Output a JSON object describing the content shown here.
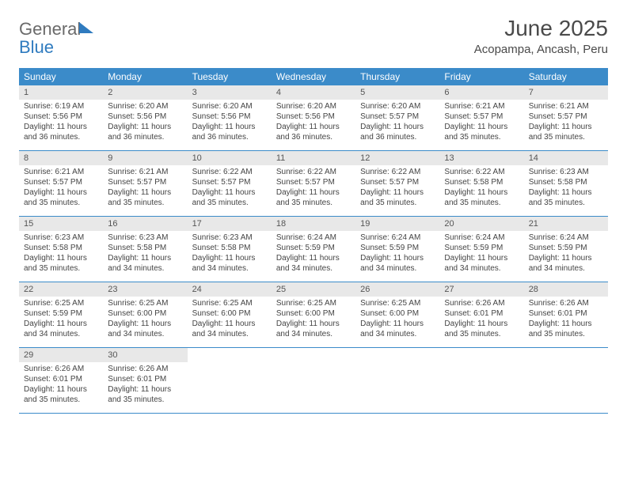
{
  "logo": {
    "part1": "General",
    "part2": "Blue"
  },
  "title": "June 2025",
  "subtitle": "Acopampa, Ancash, Peru",
  "colors": {
    "header_bg": "#3b8bc9",
    "header_text": "#ffffff",
    "daynum_bg": "#e8e8e8",
    "border": "#3b8bc9",
    "logo_gray": "#6a6a6a",
    "logo_blue": "#2f7bbf"
  },
  "weekdays": [
    "Sunday",
    "Monday",
    "Tuesday",
    "Wednesday",
    "Thursday",
    "Friday",
    "Saturday"
  ],
  "weeks": [
    [
      {
        "day": "1",
        "sunrise": "6:19 AM",
        "sunset": "5:56 PM",
        "daylight": "11 hours and 36 minutes."
      },
      {
        "day": "2",
        "sunrise": "6:20 AM",
        "sunset": "5:56 PM",
        "daylight": "11 hours and 36 minutes."
      },
      {
        "day": "3",
        "sunrise": "6:20 AM",
        "sunset": "5:56 PM",
        "daylight": "11 hours and 36 minutes."
      },
      {
        "day": "4",
        "sunrise": "6:20 AM",
        "sunset": "5:56 PM",
        "daylight": "11 hours and 36 minutes."
      },
      {
        "day": "5",
        "sunrise": "6:20 AM",
        "sunset": "5:57 PM",
        "daylight": "11 hours and 36 minutes."
      },
      {
        "day": "6",
        "sunrise": "6:21 AM",
        "sunset": "5:57 PM",
        "daylight": "11 hours and 35 minutes."
      },
      {
        "day": "7",
        "sunrise": "6:21 AM",
        "sunset": "5:57 PM",
        "daylight": "11 hours and 35 minutes."
      }
    ],
    [
      {
        "day": "8",
        "sunrise": "6:21 AM",
        "sunset": "5:57 PM",
        "daylight": "11 hours and 35 minutes."
      },
      {
        "day": "9",
        "sunrise": "6:21 AM",
        "sunset": "5:57 PM",
        "daylight": "11 hours and 35 minutes."
      },
      {
        "day": "10",
        "sunrise": "6:22 AM",
        "sunset": "5:57 PM",
        "daylight": "11 hours and 35 minutes."
      },
      {
        "day": "11",
        "sunrise": "6:22 AM",
        "sunset": "5:57 PM",
        "daylight": "11 hours and 35 minutes."
      },
      {
        "day": "12",
        "sunrise": "6:22 AM",
        "sunset": "5:57 PM",
        "daylight": "11 hours and 35 minutes."
      },
      {
        "day": "13",
        "sunrise": "6:22 AM",
        "sunset": "5:58 PM",
        "daylight": "11 hours and 35 minutes."
      },
      {
        "day": "14",
        "sunrise": "6:23 AM",
        "sunset": "5:58 PM",
        "daylight": "11 hours and 35 minutes."
      }
    ],
    [
      {
        "day": "15",
        "sunrise": "6:23 AM",
        "sunset": "5:58 PM",
        "daylight": "11 hours and 35 minutes."
      },
      {
        "day": "16",
        "sunrise": "6:23 AM",
        "sunset": "5:58 PM",
        "daylight": "11 hours and 34 minutes."
      },
      {
        "day": "17",
        "sunrise": "6:23 AM",
        "sunset": "5:58 PM",
        "daylight": "11 hours and 34 minutes."
      },
      {
        "day": "18",
        "sunrise": "6:24 AM",
        "sunset": "5:59 PM",
        "daylight": "11 hours and 34 minutes."
      },
      {
        "day": "19",
        "sunrise": "6:24 AM",
        "sunset": "5:59 PM",
        "daylight": "11 hours and 34 minutes."
      },
      {
        "day": "20",
        "sunrise": "6:24 AM",
        "sunset": "5:59 PM",
        "daylight": "11 hours and 34 minutes."
      },
      {
        "day": "21",
        "sunrise": "6:24 AM",
        "sunset": "5:59 PM",
        "daylight": "11 hours and 34 minutes."
      }
    ],
    [
      {
        "day": "22",
        "sunrise": "6:25 AM",
        "sunset": "5:59 PM",
        "daylight": "11 hours and 34 minutes."
      },
      {
        "day": "23",
        "sunrise": "6:25 AM",
        "sunset": "6:00 PM",
        "daylight": "11 hours and 34 minutes."
      },
      {
        "day": "24",
        "sunrise": "6:25 AM",
        "sunset": "6:00 PM",
        "daylight": "11 hours and 34 minutes."
      },
      {
        "day": "25",
        "sunrise": "6:25 AM",
        "sunset": "6:00 PM",
        "daylight": "11 hours and 34 minutes."
      },
      {
        "day": "26",
        "sunrise": "6:25 AM",
        "sunset": "6:00 PM",
        "daylight": "11 hours and 34 minutes."
      },
      {
        "day": "27",
        "sunrise": "6:26 AM",
        "sunset": "6:01 PM",
        "daylight": "11 hours and 35 minutes."
      },
      {
        "day": "28",
        "sunrise": "6:26 AM",
        "sunset": "6:01 PM",
        "daylight": "11 hours and 35 minutes."
      }
    ],
    [
      {
        "day": "29",
        "sunrise": "6:26 AM",
        "sunset": "6:01 PM",
        "daylight": "11 hours and 35 minutes."
      },
      {
        "day": "30",
        "sunrise": "6:26 AM",
        "sunset": "6:01 PM",
        "daylight": "11 hours and 35 minutes."
      },
      null,
      null,
      null,
      null,
      null
    ]
  ],
  "labels": {
    "sunrise": "Sunrise:",
    "sunset": "Sunset:",
    "daylight": "Daylight:"
  }
}
